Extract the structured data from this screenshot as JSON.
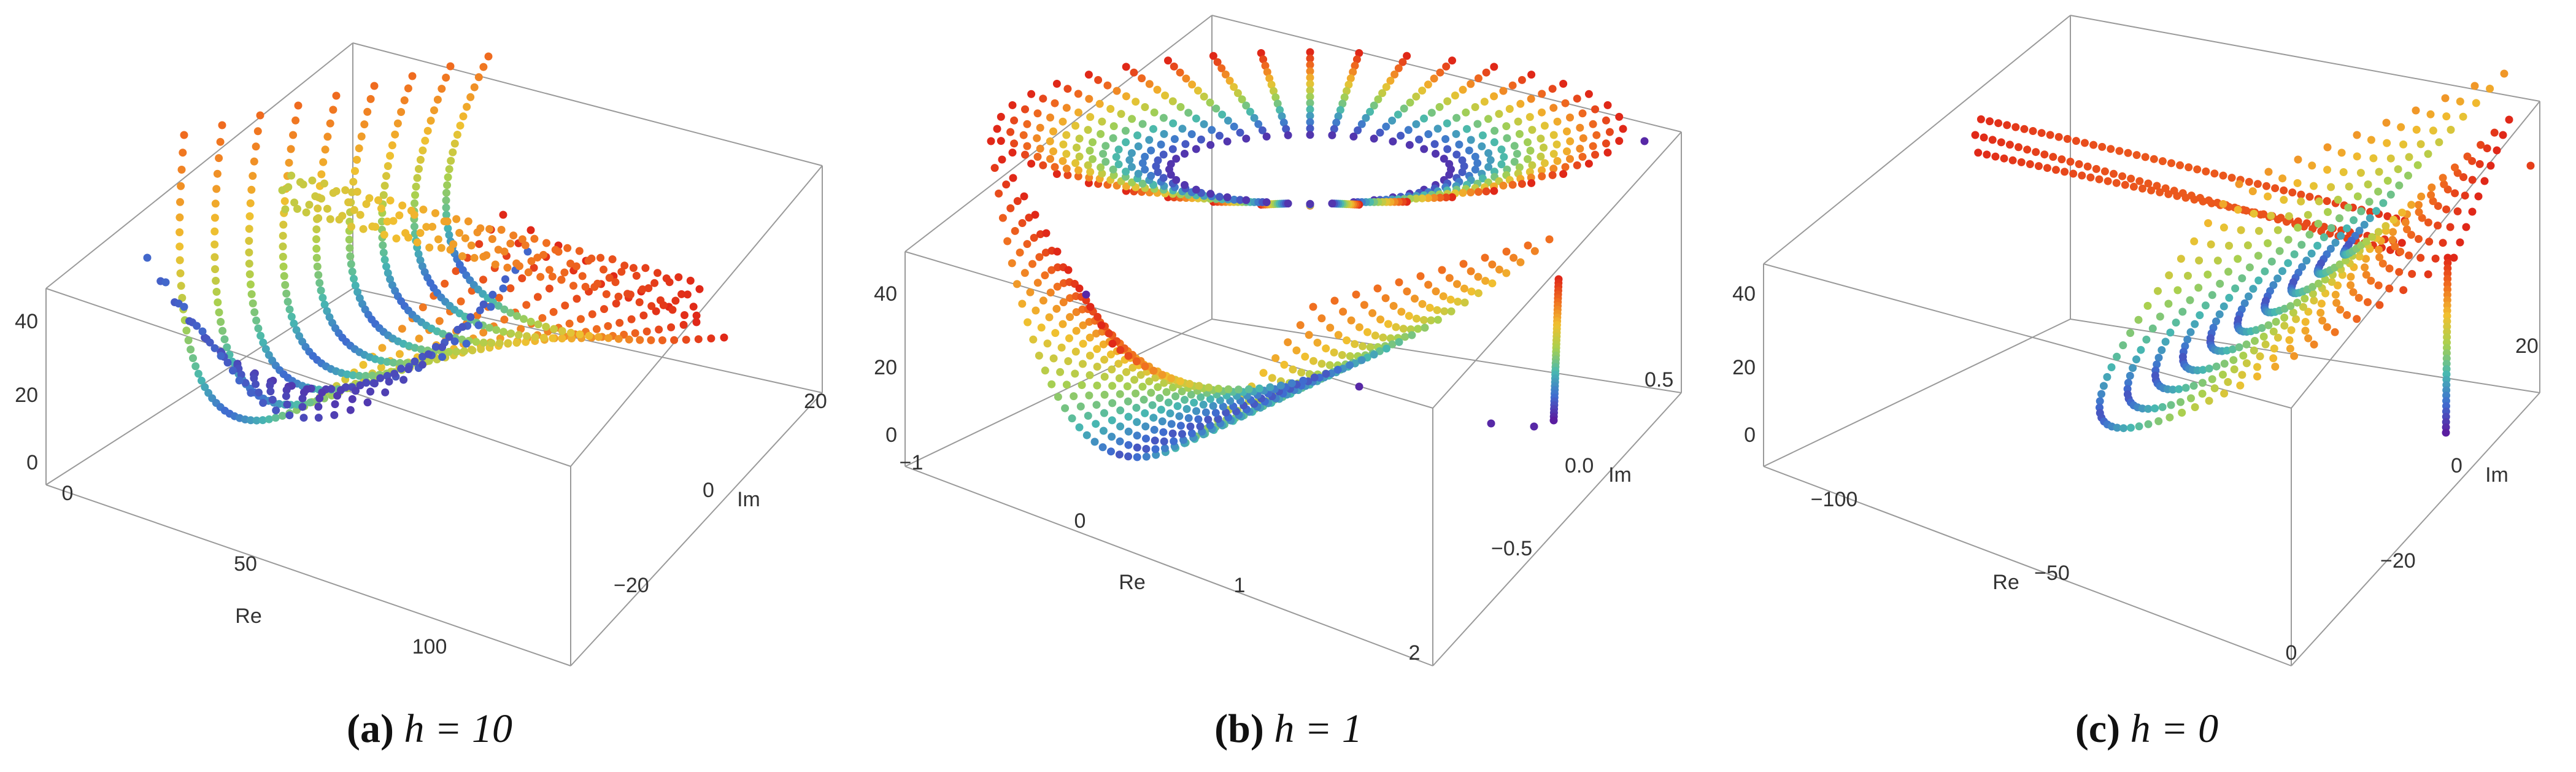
{
  "chart_data": [
    {
      "type": "scatter",
      "title": "",
      "caption": {
        "tag": "(a)",
        "expr": "h = 10"
      },
      "xlabel": "Re",
      "ylabel": "Im",
      "zlabel": "",
      "x_ticks": [
        "0",
        "50",
        "100"
      ],
      "y_ticks": [
        "20",
        "0",
        "−20"
      ],
      "z_ticks": [
        "40",
        "20",
        "0"
      ],
      "colormap": [
        "#5a1ea0",
        "#3f6fd0",
        "#48b8b0",
        "#a8d050",
        "#f0c030",
        "#f07020",
        "#e02818"
      ]
    },
    {
      "type": "scatter",
      "title": "",
      "caption": {
        "tag": "(b)",
        "expr": "h = 1"
      },
      "xlabel": "Re",
      "ylabel": "Im",
      "zlabel": "",
      "x_ticks": [
        "−1",
        "0",
        "1",
        "2"
      ],
      "y_ticks": [
        "0.5",
        "0.0",
        "−0.5"
      ],
      "z_ticks": [
        "40",
        "20",
        "0"
      ],
      "colormap": [
        "#5a1ea0",
        "#3f6fd0",
        "#48b8b0",
        "#a8d050",
        "#f0c030",
        "#f07020",
        "#e02818"
      ]
    },
    {
      "type": "scatter",
      "title": "",
      "caption": {
        "tag": "(c)",
        "expr": "h = 0"
      },
      "xlabel": "Re",
      "ylabel": "Im",
      "zlabel": "",
      "x_ticks": [
        "−100",
        "−50",
        "0"
      ],
      "y_ticks": [
        "20",
        "0",
        "−20"
      ],
      "z_ticks": [
        "40",
        "20",
        "0"
      ],
      "colormap": [
        "#5a1ea0",
        "#3f6fd0",
        "#48b8b0",
        "#a8d050",
        "#f0c030",
        "#f07020",
        "#e02818"
      ]
    }
  ]
}
